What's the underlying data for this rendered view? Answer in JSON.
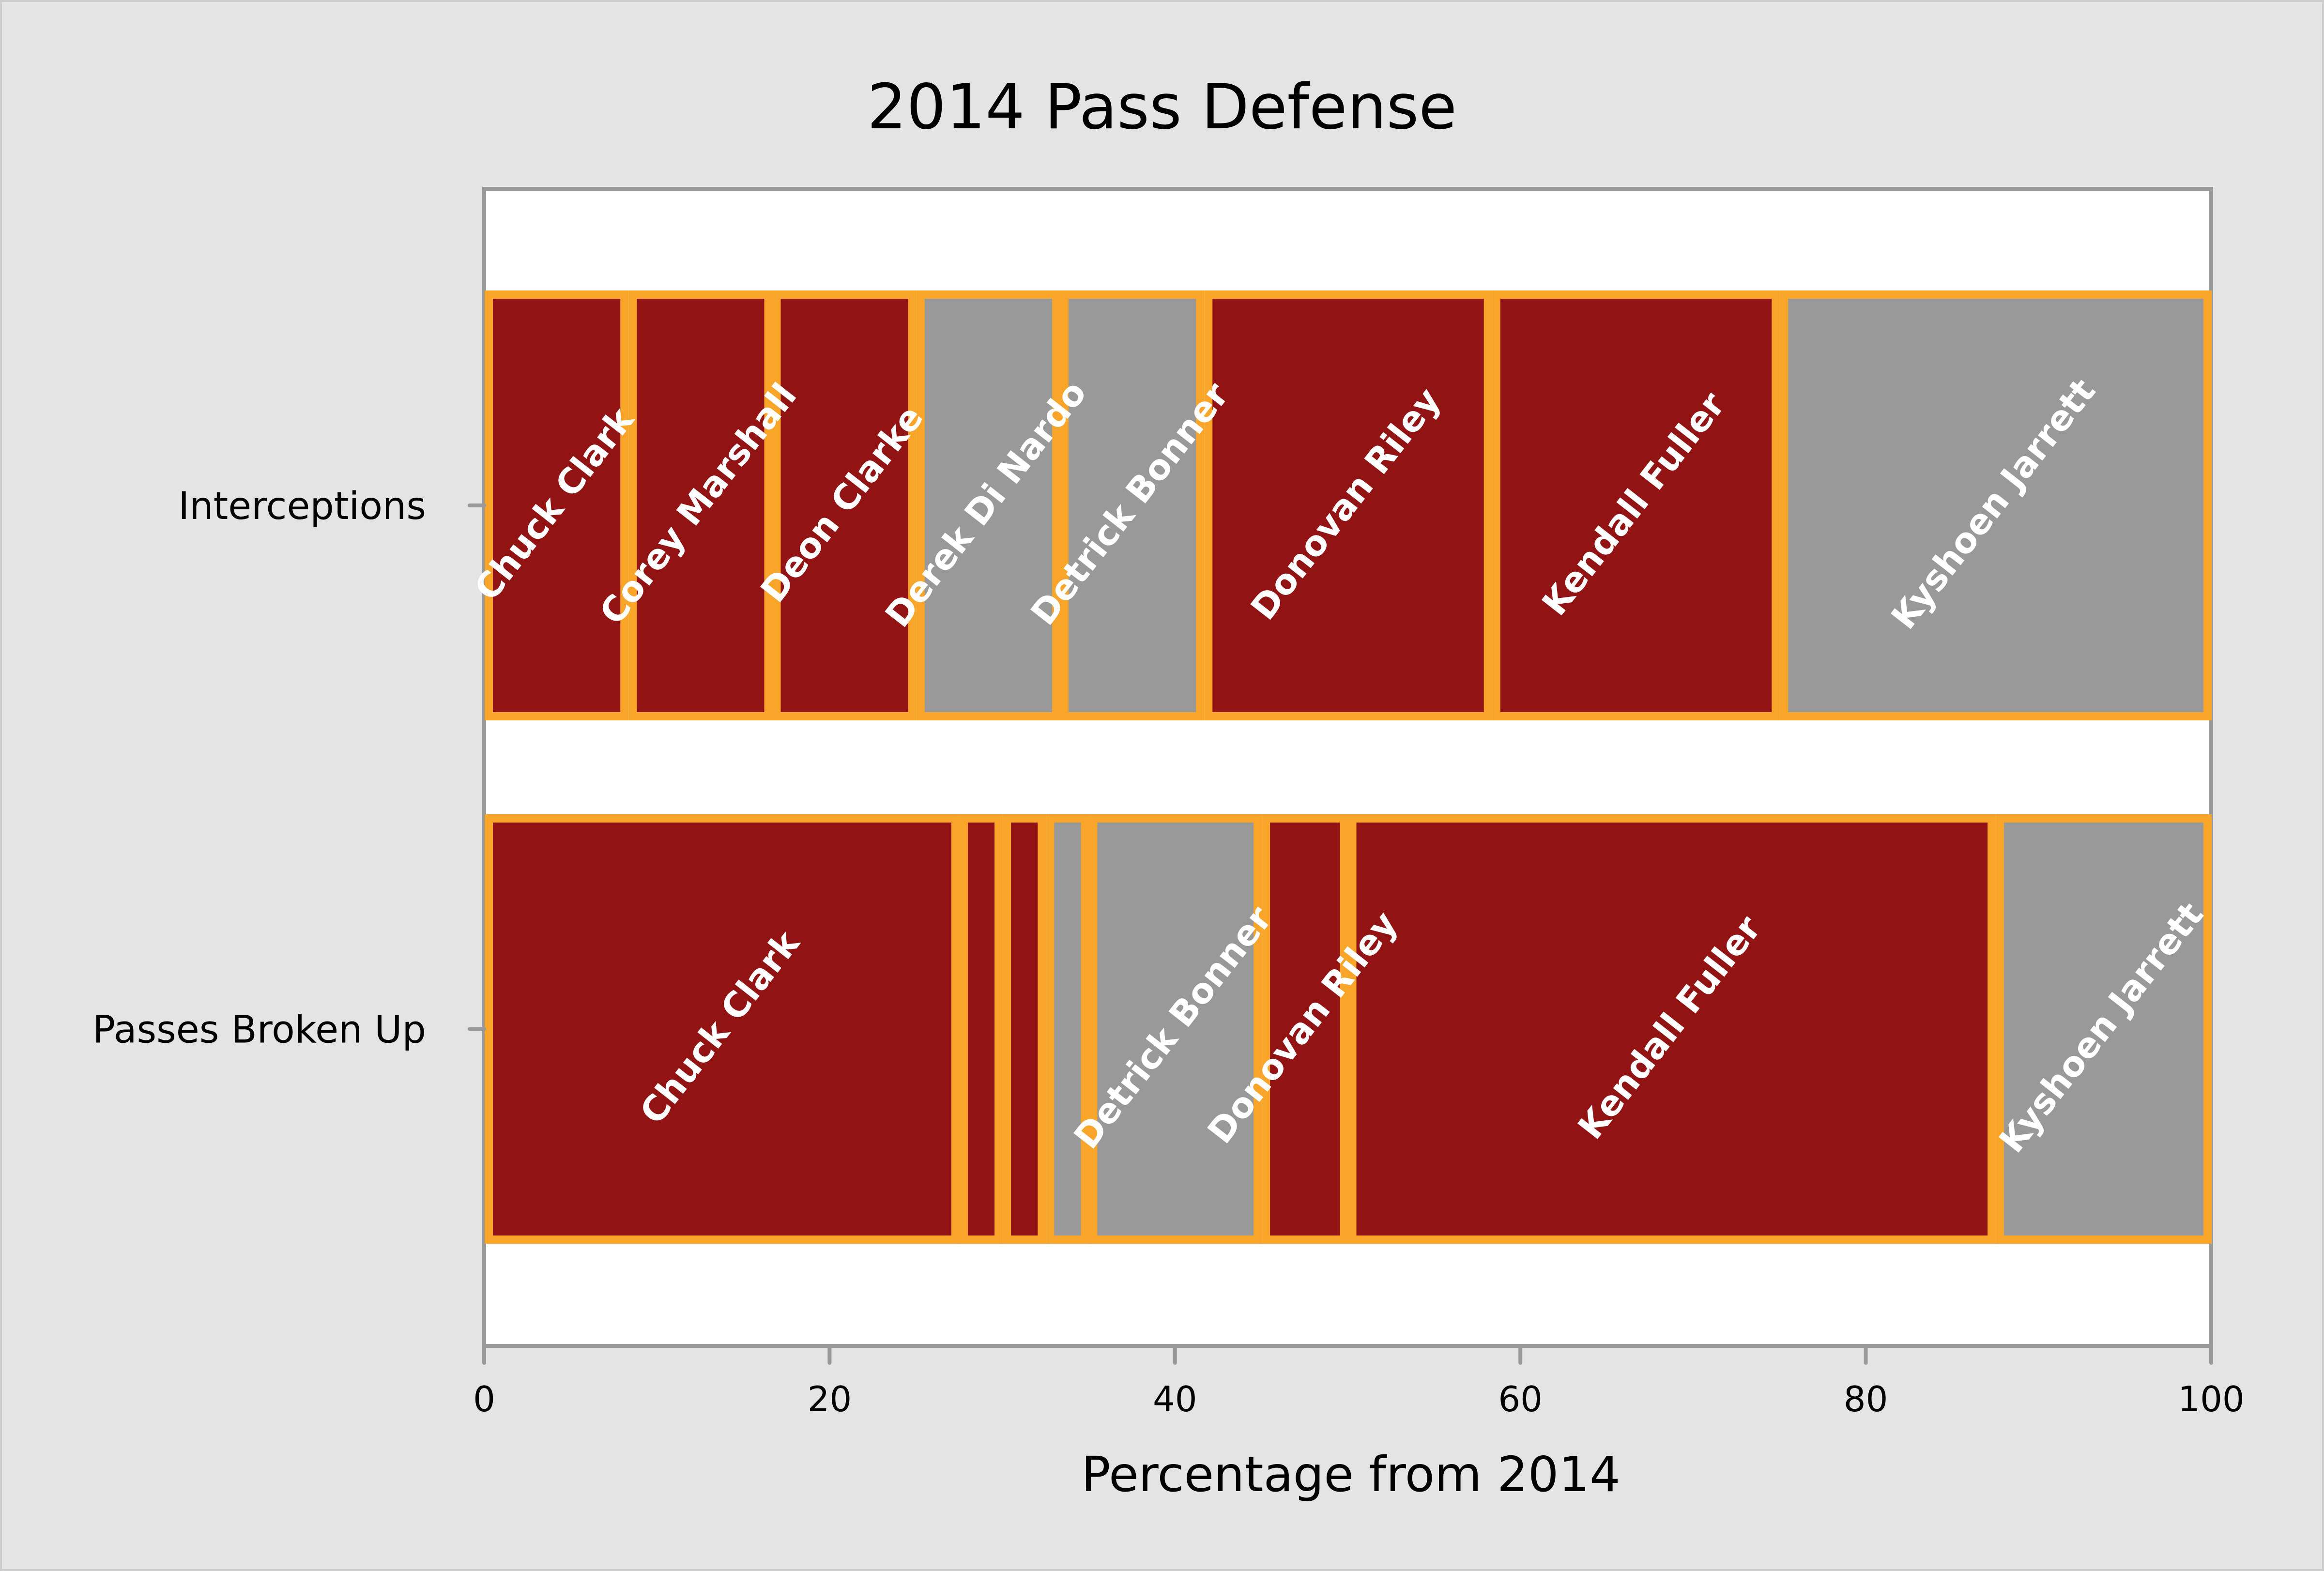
{
  "chart_data": {
    "type": "bar",
    "orientation": "horizontal",
    "stacked": "100% stacked",
    "title": "2014 Pass Defense",
    "xlabel": "Percentage from 2014",
    "ylabel": "",
    "xlim": [
      0,
      100
    ],
    "xticks": [
      0,
      20,
      40,
      60,
      80,
      100
    ],
    "grid": false,
    "legend": "none",
    "categories": [
      "Interceptions",
      "Passes Broken Up"
    ],
    "colors": {
      "red": "#921314",
      "gray": "#999999",
      "outline": "#F8A52A",
      "plot_bg": "#FFFFFF",
      "page_bg": "#E4E4E4",
      "axis": "#999999"
    },
    "series": [
      {
        "name": "Chuck Clark",
        "color": "red",
        "values": [
          1,
          11
        ],
        "percent": [
          8.33,
          27.5
        ]
      },
      {
        "name": "Corey Marshall",
        "color": "red",
        "values": [
          1,
          1
        ],
        "percent": [
          8.33,
          2.5
        ]
      },
      {
        "name": "Deon Clarke",
        "color": "red",
        "values": [
          1,
          1
        ],
        "percent": [
          8.33,
          2.5
        ]
      },
      {
        "name": "Derek Di Nardo",
        "color": "gray",
        "values": [
          1,
          1
        ],
        "percent": [
          8.33,
          2.5
        ]
      },
      {
        "name": "Detrick Bonner",
        "color": "gray",
        "values": [
          1,
          4
        ],
        "percent": [
          8.33,
          10.0
        ]
      },
      {
        "name": "Donovan Riley",
        "color": "red",
        "values": [
          2,
          2
        ],
        "percent": [
          16.67,
          5.0
        ]
      },
      {
        "name": "Kendall Fuller",
        "color": "red",
        "values": [
          2,
          15
        ],
        "percent": [
          16.67,
          37.5
        ]
      },
      {
        "name": "Kyshoen Jarrett",
        "color": "gray",
        "values": [
          3,
          5
        ],
        "percent": [
          25.0,
          12.5
        ]
      }
    ],
    "segment_labels_visible": {
      "Interceptions": [
        "Chuck Clark",
        "Corey Marshall",
        "Deon Clarke",
        "Derek Di Nardo",
        "Detrick Bonner",
        "Donovan Riley",
        "Kendall Fuller",
        "Kyshoen Jarrett"
      ],
      "Passes Broken Up": [
        "Chuck Clark",
        "Detrick Bonner",
        "Donovan Riley",
        "Kendall Fuller",
        "Kyshoen Jarrett"
      ]
    }
  }
}
